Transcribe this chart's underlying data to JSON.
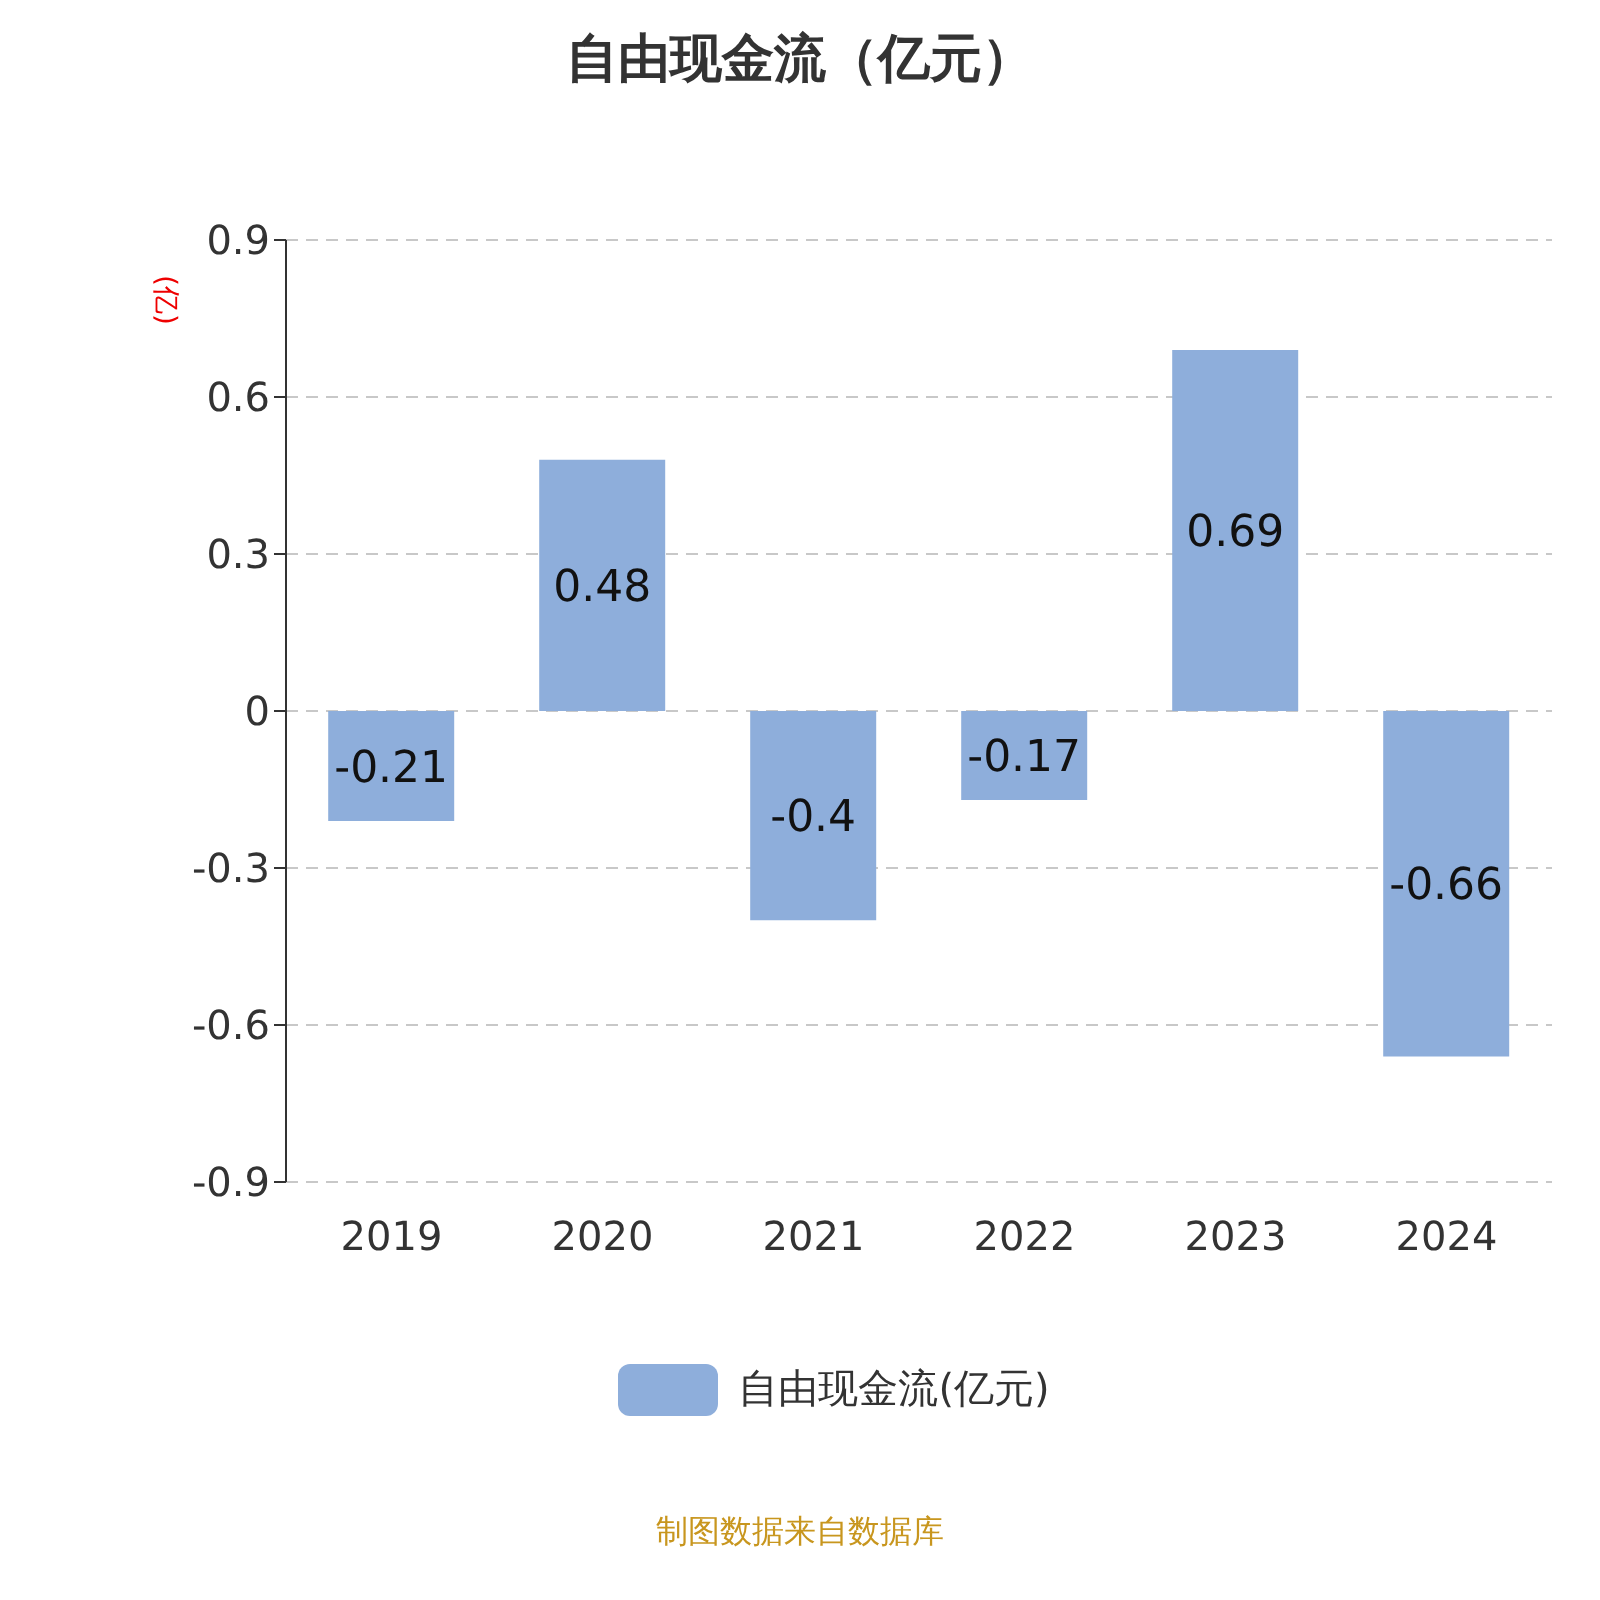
{
  "chart_data": {
    "type": "bar",
    "title": "自由现金流（亿元）",
    "ylabel": "(亿)",
    "categories": [
      "2019",
      "2020",
      "2021",
      "2022",
      "2023",
      "2024"
    ],
    "series": [
      {
        "name": "自由现金流(亿元)",
        "color": "#8eaedb",
        "values": [
          -0.21,
          0.48,
          -0.4,
          -0.17,
          0.69,
          -0.66
        ]
      }
    ],
    "ylim": [
      -0.9,
      0.9
    ],
    "yticks": [
      -0.9,
      -0.6,
      -0.3,
      0,
      0.3,
      0.6,
      0.9
    ],
    "grid": "y",
    "legend": "bottom",
    "data_labels": true,
    "annotations": [
      "制图数据来自数据库"
    ]
  }
}
